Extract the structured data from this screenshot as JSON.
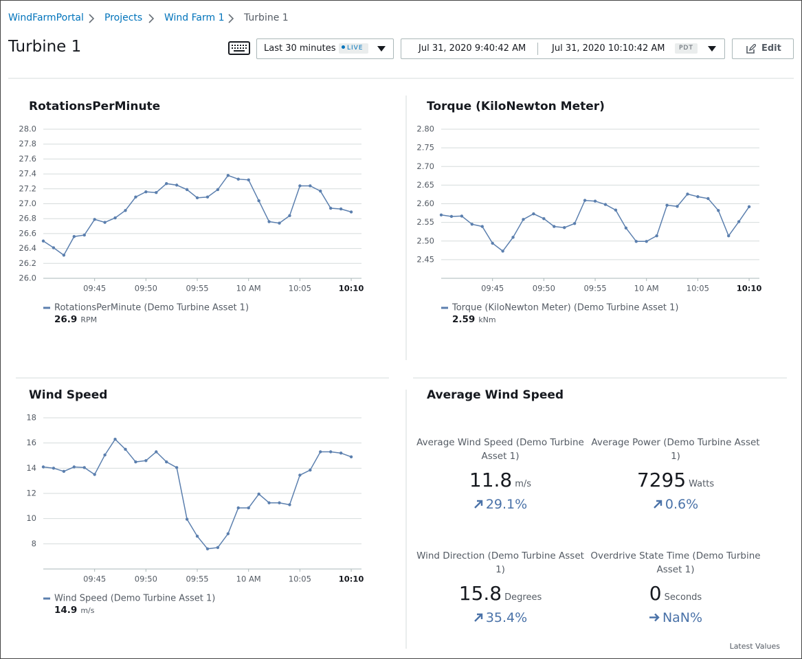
{
  "breadcrumb": [
    "WindFarmPortal",
    "Projects",
    "Wind Farm 1",
    "Turbine 1"
  ],
  "header": {
    "title": "Turbine 1",
    "time_range": "Last 30 minutes",
    "live": "LIVE",
    "start": "Jul 31, 2020 9:40:42 AM",
    "end": "Jul 31, 2020 10:10:42 AM",
    "timezone": "PDT",
    "edit": "Edit"
  },
  "chart_data": [
    {
      "type": "line",
      "title": "RotationsPerMinute",
      "grid": true,
      "xlim": [
        "09:40",
        "10:11"
      ],
      "xticks": [
        "09:45",
        "09:50",
        "09:55",
        {
          "value": "10:00",
          "label": "10 AM"
        },
        "10:05",
        "10:10"
      ],
      "ylim": [
        26,
        28
      ],
      "yticks": [
        {
          "value": 26,
          "label": "26.0"
        },
        26.2,
        26.4,
        26.6,
        26.8,
        {
          "value": 27,
          "label": "27.0"
        },
        27.2,
        27.4,
        27.6,
        27.8,
        {
          "value": 28,
          "label": "28.0"
        }
      ],
      "x": [
        "09:40",
        "09:41",
        "09:42",
        "09:43",
        "09:44",
        "09:45",
        "09:46",
        "09:47",
        "09:48",
        "09:49",
        "09:50",
        "09:51",
        "09:52",
        "09:53",
        "09:54",
        "09:55",
        "09:56",
        "09:57",
        "09:58",
        "09:59",
        "10:00",
        "10:01",
        "10:02",
        "10:03",
        "10:04",
        "10:05",
        "10:06",
        "10:07",
        "10:08",
        "10:09",
        "10:10"
      ],
      "series": [
        {
          "name": "RotationsPerMinute (Demo Turbine Asset 1)",
          "color": "#5b7fae",
          "values": [
            26.5,
            26.41,
            26.31,
            26.56,
            26.58,
            26.79,
            26.75,
            26.81,
            26.91,
            27.09,
            27.16,
            27.15,
            27.27,
            27.25,
            27.19,
            27.08,
            27.09,
            27.19,
            27.38,
            27.33,
            27.32,
            27.04,
            26.76,
            26.74,
            26.84,
            27.24,
            27.24,
            27.17,
            26.94,
            26.93,
            26.89
          ]
        }
      ],
      "latest": 26.9,
      "unit": "RPM"
    },
    {
      "type": "line",
      "title": "Torque (KiloNewton Meter)",
      "grid": true,
      "xlim": [
        "09:40",
        "10:11"
      ],
      "xticks": [
        "09:45",
        "09:50",
        "09:55",
        {
          "value": "10:00",
          "label": "10 AM"
        },
        "10:05",
        "10:10"
      ],
      "ylim": [
        2.4,
        2.8
      ],
      "yticks": [
        2.45,
        {
          "value": 2.5,
          "label": "2.50"
        },
        2.55,
        {
          "value": 2.6,
          "label": "2.60"
        },
        2.65,
        {
          "value": 2.7,
          "label": "2.70"
        },
        2.75,
        {
          "value": 2.8,
          "label": "2.80"
        }
      ],
      "x": [
        "09:40",
        "09:41",
        "09:42",
        "09:43",
        "09:44",
        "09:45",
        "09:46",
        "09:47",
        "09:48",
        "09:49",
        "09:50",
        "09:51",
        "09:52",
        "09:53",
        "09:54",
        "09:55",
        "09:56",
        "09:57",
        "09:58",
        "09:59",
        "10:00",
        "10:01",
        "10:02",
        "10:03",
        "10:04",
        "10:05",
        "10:06",
        "10:07",
        "10:08",
        "10:09",
        "10:10"
      ],
      "series": [
        {
          "name": "Torque (KiloNewton Meter) (Demo Turbine Asset 1)",
          "color": "#5b7fae",
          "values": [
            2.57,
            2.566,
            2.567,
            2.545,
            2.539,
            2.494,
            2.473,
            2.51,
            2.558,
            2.573,
            2.56,
            2.539,
            2.536,
            2.547,
            2.609,
            2.607,
            2.598,
            2.583,
            2.535,
            2.499,
            2.499,
            2.514,
            2.596,
            2.593,
            2.626,
            2.619,
            2.614,
            2.582,
            2.514,
            2.552,
            2.592
          ]
        }
      ],
      "latest": 2.59,
      "unit": "kNm"
    },
    {
      "type": "line",
      "title": "Wind Speed",
      "grid": true,
      "xlim": [
        "09:40",
        "10:11"
      ],
      "xticks": [
        "09:45",
        "09:50",
        "09:55",
        {
          "value": "10:00",
          "label": "10 AM"
        },
        "10:05",
        "10:10"
      ],
      "ylim": [
        6,
        18
      ],
      "yticks": [
        8,
        10,
        12,
        14,
        16,
        18
      ],
      "x": [
        "09:40",
        "09:41",
        "09:42",
        "09:43",
        "09:44",
        "09:45",
        "09:46",
        "09:47",
        "09:48",
        "09:49",
        "09:50",
        "09:51",
        "09:52",
        "09:53",
        "09:54",
        "09:55",
        "09:56",
        "09:57",
        "09:58",
        "09:59",
        "10:00",
        "10:01",
        "10:02",
        "10:03",
        "10:04",
        "10:05",
        "10:06",
        "10:07",
        "10:08",
        "10:09",
        "10:10"
      ],
      "series": [
        {
          "name": "Wind Speed (Demo Turbine Asset 1)",
          "color": "#5b7fae",
          "values": [
            14.1,
            14.0,
            13.75,
            14.1,
            14.05,
            13.5,
            15.05,
            16.3,
            15.5,
            14.5,
            14.6,
            15.3,
            14.5,
            14.05,
            9.95,
            8.6,
            7.6,
            7.7,
            8.8,
            10.85,
            10.85,
            11.95,
            11.25,
            11.25,
            11.1,
            13.45,
            13.85,
            15.3,
            15.3,
            15.2,
            14.9
          ]
        }
      ],
      "latest": 14.9,
      "unit": "m/s"
    }
  ],
  "kpi_panel": {
    "title": "Average Wind Speed",
    "footer": "Latest Values",
    "items": [
      {
        "label": "Average Wind Speed (Demo Turbine Asset 1)",
        "value": 11.8,
        "unit": "m/s",
        "change": "29.1%"
      },
      {
        "label": "Average Power (Demo Turbine Asset 1)",
        "value": 7295,
        "unit": "Watts",
        "change": "0.6%"
      },
      {
        "label": "Wind Direction (Demo Turbine Asset 1)",
        "value": 15.8,
        "unit": "Degrees",
        "change": "35.4%"
      },
      {
        "label": "Overdrive State Time (Demo Turbine Asset 1)",
        "value": 0,
        "unit": "Seconds",
        "change": "NaN%"
      }
    ]
  }
}
